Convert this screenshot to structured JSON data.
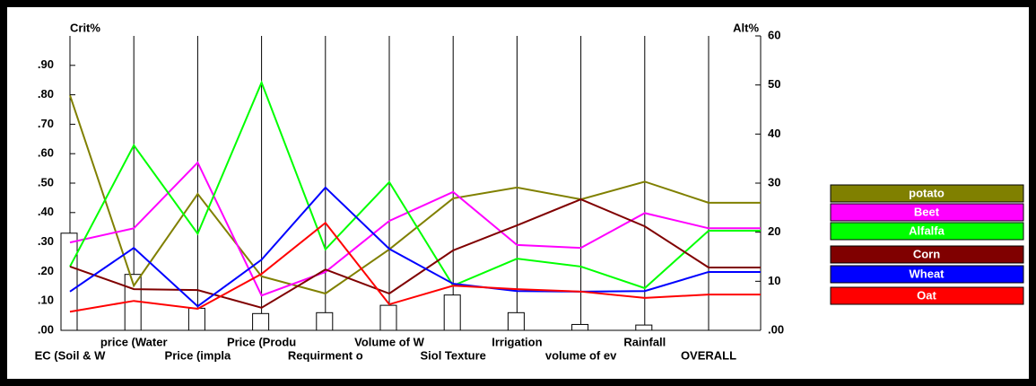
{
  "chart_data": {
    "type": "line",
    "y_label": "Crit%",
    "y2_label": "Alt%",
    "categories": [
      "EC (Soil & W",
      "price (Water",
      "Price (impla",
      "Price (Produ",
      "Requirment o",
      "Volume   of W",
      "Siol Texture",
      "Irrigation",
      "volume of ev",
      "Rainfall",
      "OVERALL"
    ],
    "criteria_weights": {
      "color": "#ffffff",
      "values": [
        0.33,
        0.19,
        0.075,
        0.057,
        0.06,
        0.085,
        0.12,
        0.06,
        0.02,
        0.018,
        null
      ]
    },
    "series": [
      {
        "name": "potato",
        "color": "#808000",
        "axis": "y2",
        "values": [
          47.9,
          9.1,
          27.8,
          11,
          7.5,
          16.5,
          26.9,
          29.1,
          26.7,
          30.3,
          26
        ]
      },
      {
        "name": "Beet",
        "color": "#ff00ff",
        "axis": "y2",
        "values": [
          17.9,
          20.8,
          34.2,
          7.1,
          11.9,
          22.3,
          28.2,
          17.4,
          16.8,
          23.9,
          20.8
        ]
      },
      {
        "name": "Alfalfa",
        "color": "#00ff00",
        "axis": "y2",
        "values": [
          13,
          37.7,
          19.7,
          50.5,
          16.5,
          30.2,
          9.1,
          14.6,
          13,
          8.6,
          20.3
        ]
      },
      {
        "name": "Corn",
        "color": "#800000",
        "axis": "y2",
        "values": [
          13,
          8.4,
          8.2,
          4.6,
          12.4,
          7.5,
          16.3,
          21.4,
          26.7,
          21.2,
          12.8
        ]
      },
      {
        "name": "Wheat",
        "color": "#0000ff",
        "axis": "y2",
        "values": [
          7.9,
          16.8,
          4.9,
          14.4,
          29.1,
          16.6,
          9.5,
          8,
          7.9,
          8,
          11.9
        ]
      },
      {
        "name": "Oat",
        "color": "#ff0000",
        "axis": "y2",
        "values": [
          3.8,
          6,
          4.4,
          11.5,
          21.9,
          5.3,
          9.1,
          8.4,
          7.9,
          6.6,
          7.3
        ]
      }
    ],
    "ylim": [
      0,
      1
    ],
    "yticks": [
      {
        "value": 0,
        "label": ".00"
      },
      {
        "value": 0.1,
        "label": ".10"
      },
      {
        "value": 0.2,
        "label": ".20"
      },
      {
        "value": 0.3,
        "label": ".30"
      },
      {
        "value": 0.4,
        "label": ".40"
      },
      {
        "value": 0.5,
        "label": ".50"
      },
      {
        "value": 0.6,
        "label": ".60"
      },
      {
        "value": 0.7,
        "label": ".70"
      },
      {
        "value": 0.8,
        "label": ".80"
      },
      {
        "value": 0.9,
        "label": ".90"
      }
    ],
    "y2lim": [
      0,
      60
    ],
    "y2ticks": [
      {
        "value": 0,
        "label": ".00"
      },
      10,
      20,
      30,
      40,
      50,
      60
    ],
    "legend": "right"
  }
}
